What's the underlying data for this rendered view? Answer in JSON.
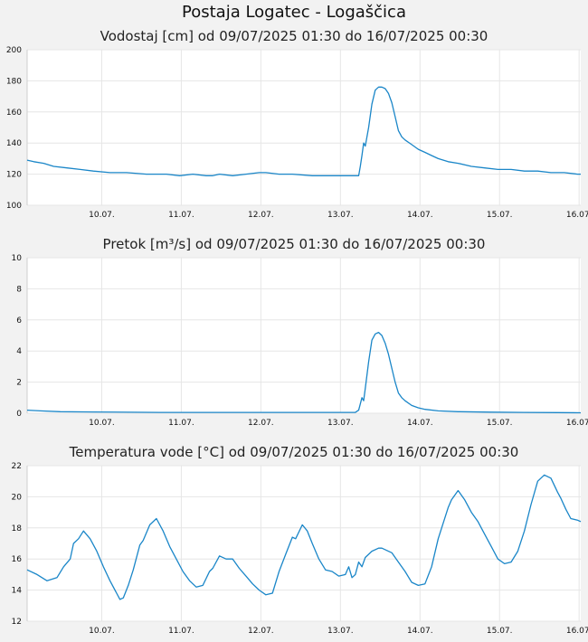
{
  "page": {
    "title": "Postaja Logatec - Logaščica"
  },
  "chart_data": [
    {
      "type": "line",
      "title": "Vodostaj [cm] od 09/07/2025 01:30 do 16/07/2025 00:30",
      "ylim": [
        100,
        200
      ],
      "yticks": [
        100,
        120,
        140,
        160,
        180,
        200
      ],
      "xlim": [
        0,
        167
      ],
      "x_tick_hours": [
        22.5,
        46.5,
        70.5,
        94.5,
        118.5,
        142.5,
        166.5
      ],
      "x_tick_labels": [
        "10.07.",
        "11.07.",
        "12.07.",
        "13.07.",
        "14.07.",
        "15.07.",
        "16.07."
      ],
      "series": [
        {
          "color": "#1a86c8",
          "x": [
            0,
            2,
            5,
            8,
            12,
            16,
            20,
            25,
            30,
            36,
            42,
            46,
            50,
            54,
            56,
            58,
            62,
            66,
            70,
            72,
            76,
            80,
            86,
            90,
            94,
            96,
            98,
            100,
            100.5,
            101,
            101.5,
            102,
            103,
            104,
            105,
            106,
            107,
            108,
            109,
            110,
            111,
            112,
            113,
            114,
            116,
            118,
            120,
            122,
            124,
            127,
            130,
            134,
            138,
            142,
            146,
            150,
            154,
            158,
            160,
            162,
            166,
            167
          ],
          "y": [
            129,
            128,
            127,
            125,
            124,
            123,
            122,
            121,
            121,
            120,
            120,
            119,
            120,
            119,
            119,
            120,
            119,
            120,
            121,
            121,
            120,
            120,
            119,
            119,
            119,
            119,
            119,
            119,
            125,
            132,
            140,
            138,
            150,
            165,
            174,
            176,
            176,
            175,
            172,
            166,
            157,
            148,
            144,
            142,
            139,
            136,
            134,
            132,
            130,
            128,
            127,
            125,
            124,
            123,
            123,
            122,
            122,
            121,
            121,
            121,
            120,
            120
          ]
        }
      ]
    },
    {
      "type": "line",
      "title": "Pretok [m³/s] od 09/07/2025 01:30 do 16/07/2025 00:30",
      "ylim": [
        0,
        10
      ],
      "yticks": [
        0,
        2,
        4,
        6,
        8,
        10
      ],
      "xlim": [
        0,
        167
      ],
      "x_tick_hours": [
        22.5,
        46.5,
        70.5,
        94.5,
        118.5,
        142.5,
        166.5
      ],
      "x_tick_labels": [
        "10.07.",
        "11.07.",
        "12.07.",
        "13.07.",
        "14.07.",
        "15.07.",
        "16.07."
      ],
      "series": [
        {
          "color": "#1a86c8",
          "x": [
            0,
            4,
            10,
            20,
            40,
            60,
            80,
            96,
            99,
            100,
            100.5,
            101,
            101.5,
            102,
            103,
            104,
            105,
            106,
            107,
            108,
            109,
            110,
            111,
            112,
            113,
            114,
            116,
            118,
            120,
            124,
            130,
            140,
            150,
            160,
            167
          ],
          "y": [
            0.2,
            0.15,
            0.1,
            0.08,
            0.05,
            0.05,
            0.05,
            0.05,
            0.05,
            0.2,
            0.6,
            1.0,
            0.8,
            1.6,
            3.3,
            4.7,
            5.1,
            5.2,
            5.0,
            4.5,
            3.8,
            2.9,
            2.0,
            1.3,
            1.0,
            0.8,
            0.5,
            0.35,
            0.25,
            0.15,
            0.1,
            0.07,
            0.05,
            0.04,
            0.03
          ]
        }
      ]
    },
    {
      "type": "line",
      "title": "Temperatura vode [°C] od 09/07/2025 01:30 do 16/07/2025 00:30",
      "ylim": [
        12,
        22
      ],
      "yticks": [
        12,
        14,
        16,
        18,
        20,
        22
      ],
      "xlim": [
        0,
        167
      ],
      "x_tick_hours": [
        22.5,
        46.5,
        70.5,
        94.5,
        118.5,
        142.5,
        166.5
      ],
      "x_tick_labels": [
        "10.07.",
        "11.07.",
        "12.07.",
        "13.07.",
        "14.07.",
        "15.07.",
        "16.07."
      ],
      "series": [
        {
          "color": "#1a86c8",
          "x": [
            0,
            3,
            6,
            9,
            11,
            13,
            14,
            15.5,
            17,
            19,
            21,
            23,
            25,
            27,
            28,
            29,
            30.5,
            32,
            34,
            35,
            37,
            39,
            41,
            43,
            45,
            47,
            49,
            51,
            53,
            55,
            56,
            58,
            60,
            62,
            64,
            66,
            68,
            70,
            72,
            74,
            76,
            78,
            80,
            81,
            83,
            84.5,
            86,
            88,
            90,
            92,
            94,
            96,
            97,
            98,
            99,
            100,
            101,
            102,
            104,
            106,
            107,
            110,
            112,
            114,
            116,
            118,
            120,
            122,
            124,
            127,
            128,
            130,
            132,
            134,
            136,
            138,
            140,
            142,
            144,
            146,
            148,
            150,
            152,
            154,
            156,
            158,
            160,
            161,
            162.5,
            164,
            166,
            167
          ],
          "y": [
            15.3,
            15.0,
            14.6,
            14.8,
            15.5,
            16.0,
            17.0,
            17.3,
            17.8,
            17.3,
            16.5,
            15.5,
            14.6,
            13.8,
            13.4,
            13.5,
            14.3,
            15.3,
            16.9,
            17.2,
            18.2,
            18.6,
            17.8,
            16.8,
            16.0,
            15.2,
            14.6,
            14.2,
            14.3,
            15.2,
            15.4,
            16.2,
            16.0,
            16.0,
            15.4,
            14.9,
            14.4,
            14.0,
            13.7,
            13.8,
            15.2,
            16.3,
            17.4,
            17.3,
            18.2,
            17.8,
            17.0,
            16.0,
            15.3,
            15.2,
            14.9,
            15.0,
            15.5,
            14.8,
            15.0,
            15.8,
            15.5,
            16.1,
            16.5,
            16.7,
            16.7,
            16.4,
            15.8,
            15.2,
            14.5,
            14.3,
            14.4,
            15.5,
            17.3,
            19.3,
            19.8,
            20.4,
            19.8,
            19.0,
            18.4,
            17.6,
            16.8,
            16.0,
            15.7,
            15.8,
            16.5,
            17.8,
            19.5,
            21.0,
            21.4,
            21.2,
            20.3,
            19.9,
            19.2,
            18.6,
            18.5,
            18.4
          ]
        }
      ]
    }
  ]
}
